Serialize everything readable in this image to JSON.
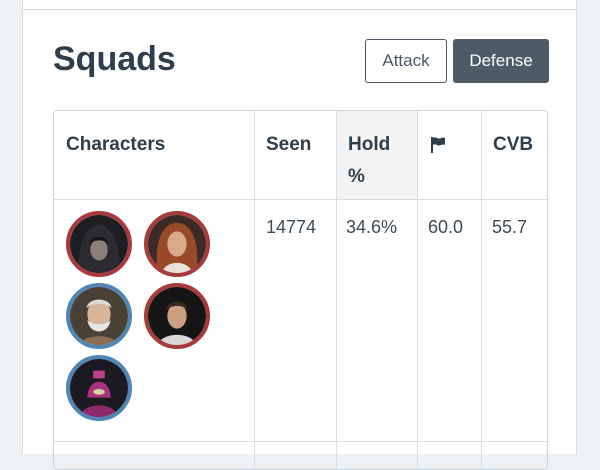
{
  "section": {
    "title": "Squads"
  },
  "buttons": {
    "attack": "Attack",
    "defense": "Defense"
  },
  "table": {
    "headers": {
      "characters": "Characters",
      "seen": "Seen",
      "hold_line1": "Hold",
      "hold_line2": "%",
      "flag_icon": "flag-icon",
      "cvb": "CVB"
    },
    "rows": [
      {
        "seen": "14774",
        "hold": "34.6%",
        "flag": "60.0",
        "cvb": "55.7",
        "characters": [
          {
            "name": "hooded-sith-portrait",
            "ring": "#a83a3c"
          },
          {
            "name": "red-haired-woman-portrait",
            "ring": "#a83a3c"
          },
          {
            "name": "bearded-old-man-portrait",
            "ring": "#4f86b6"
          },
          {
            "name": "young-man-portrait",
            "ring": "#a83a3c"
          },
          {
            "name": "pink-armored-figure-portrait",
            "ring": "#4f86b6"
          }
        ]
      }
    ]
  },
  "colors": {
    "primary_button": "#4d5b68",
    "hold_header_bg": "#f4f4f4"
  }
}
